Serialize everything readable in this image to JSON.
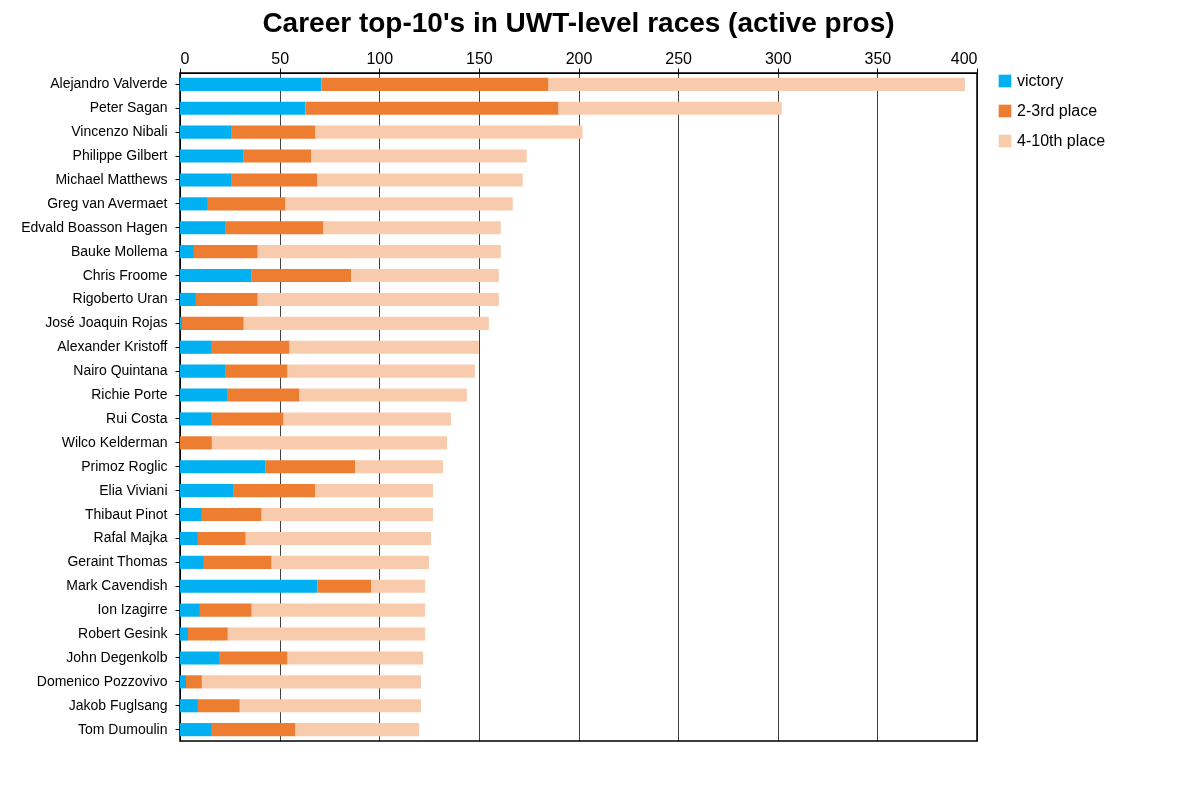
{
  "chart_data": {
    "type": "bar",
    "title": "Career top-10's in UWT-level races (active pros)",
    "orientation": "horizontal",
    "stacked": true,
    "categories": [
      "Alejandro Valverde",
      "Peter Sagan",
      "Vincenzo Nibali",
      "Philippe Gilbert",
      "Michael Matthews",
      "Greg van Avermaet",
      "Edvald Boasson Hagen",
      "Bauke Mollema",
      "Chris Froome",
      "Rigoberto Uran",
      "José Joaquin Rojas",
      "Alexander Kristoff",
      "Nairo Quintana",
      "Richie Porte",
      "Rui Costa",
      "Wilco Kelderman",
      "Primoz Roglic",
      "Elia Viviani",
      "Thibaut Pinot",
      "Rafal Majka",
      "Geraint Thomas",
      "Mark Cavendish",
      "Ion Izagirre",
      "Robert Gesink",
      "John Degenkolb",
      "Domenico Pozzovivo",
      "Jakob Fuglsang",
      "Tom Dumoulin"
    ],
    "series": [
      {
        "name": "victory",
        "color": "#00b0f0",
        "values": [
          71,
          63,
          26,
          32,
          26,
          14,
          23,
          7,
          36,
          8,
          1,
          16,
          23,
          24,
          16,
          0,
          43,
          27,
          11,
          9,
          12,
          69,
          10,
          4,
          20,
          3,
          9,
          16
        ]
      },
      {
        "name": "2-3rd place",
        "color": "#ed7d31",
        "values": [
          114,
          127,
          42,
          34,
          43,
          39,
          49,
          32,
          50,
          31,
          31,
          39,
          31,
          36,
          36,
          16,
          45,
          41,
          30,
          24,
          34,
          27,
          26,
          20,
          34,
          8,
          21,
          42
        ]
      },
      {
        "name": "4-10th place",
        "color": "#f8cbad",
        "values": [
          209,
          112,
          134,
          108,
          103,
          114,
          89,
          122,
          74,
          121,
          123,
          95,
          94,
          84,
          84,
          118,
          44,
          59,
          86,
          93,
          79,
          27,
          87,
          99,
          68,
          110,
          91,
          62
        ]
      }
    ],
    "xlim": [
      0,
      400
    ],
    "xticks": [
      0,
      50,
      100,
      150,
      200,
      250,
      300,
      350,
      400
    ],
    "grid": "x",
    "legend": "right"
  }
}
